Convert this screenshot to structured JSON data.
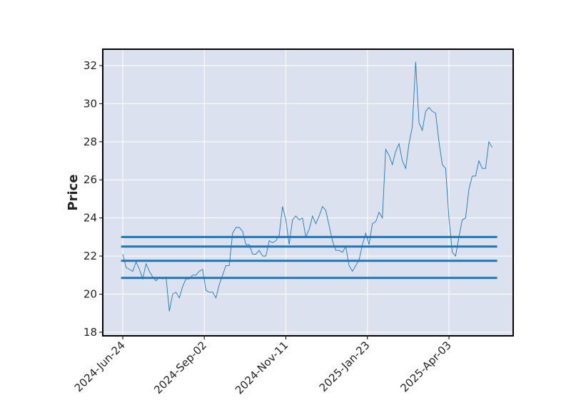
{
  "chart_data": {
    "type": "line",
    "ylabel": "Price",
    "color": "#1f77b4",
    "hlines": [
      23.0,
      22.5,
      21.75,
      20.85
    ],
    "hline_color": "#1f77b4",
    "background": "#dce1ef",
    "grid": true,
    "values": [
      22.1,
      21.4,
      21.3,
      21.2,
      21.7,
      21.3,
      20.8,
      21.6,
      21.2,
      20.9,
      20.7,
      20.9,
      20.8,
      20.9,
      19.1,
      20.0,
      20.1,
      19.8,
      20.4,
      20.8,
      20.8,
      21.0,
      21.0,
      21.2,
      21.3,
      20.2,
      20.1,
      20.1,
      19.8,
      20.5,
      21.0,
      21.5,
      21.5,
      23.2,
      23.5,
      23.5,
      23.3,
      22.6,
      22.6,
      22.1,
      22.1,
      22.3,
      22.0,
      22.0,
      22.8,
      22.7,
      22.8,
      23.1,
      24.6,
      23.9,
      22.6,
      23.9,
      24.1,
      23.9,
      24.0,
      23.0,
      23.4,
      24.1,
      23.7,
      24.1,
      24.6,
      24.4,
      23.6,
      22.8,
      22.3,
      22.3,
      22.2,
      22.5,
      21.5,
      21.2,
      21.5,
      21.8,
      22.6,
      23.2,
      22.6,
      23.7,
      23.8,
      24.3,
      24.0,
      27.6,
      27.3,
      26.8,
      27.5,
      27.9,
      27.0,
      26.6,
      27.9,
      28.8,
      32.2,
      29.0,
      28.6,
      29.6,
      29.8,
      29.6,
      29.5,
      28.0,
      26.8,
      26.6,
      24.0,
      22.2,
      22.0,
      23.0,
      23.9,
      24.0,
      25.5,
      26.2,
      26.2,
      27.0,
      26.6,
      26.6,
      28.0,
      27.7
    ],
    "xlim": [
      -6,
      117.3
    ],
    "xticks": [
      {
        "value": 0,
        "label": "2024-Jun-24"
      },
      {
        "value": 24.5,
        "label": "2024-Sep-02"
      },
      {
        "value": 49,
        "label": "2024-Nov-11"
      },
      {
        "value": 73.5,
        "label": "2025-Jan-23"
      },
      {
        "value": 98,
        "label": "2025-Apr-03"
      }
    ],
    "ylim": [
      17.81,
      32.86
    ],
    "yticks": [
      18,
      20,
      22,
      24,
      26,
      28,
      30,
      32
    ]
  }
}
